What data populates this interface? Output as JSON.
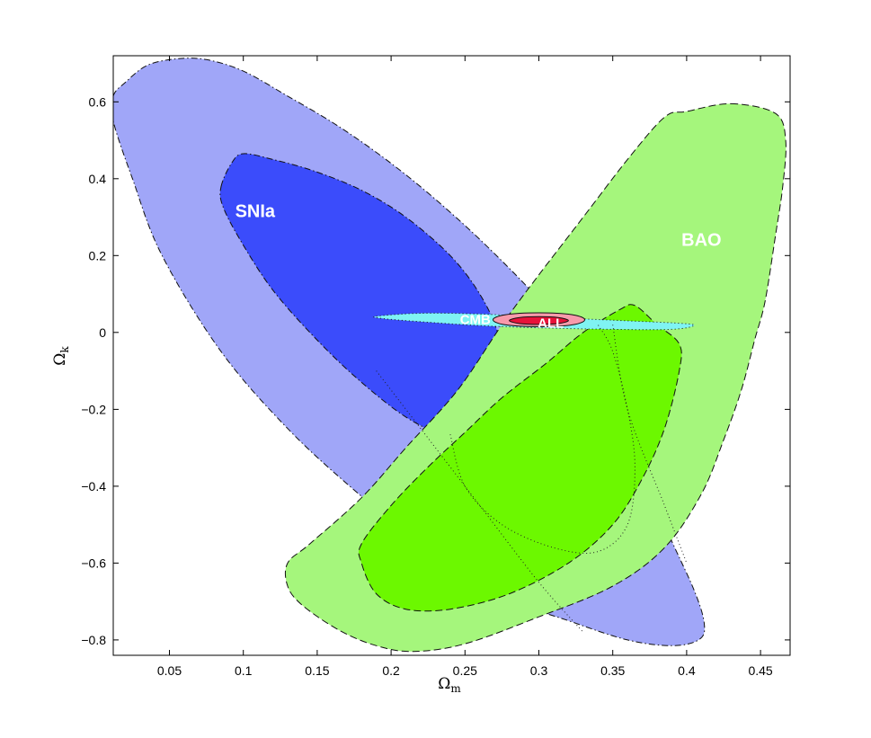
{
  "chart_data": {
    "type": "contour",
    "xlabel": "Ω",
    "xlabel_sub": "m",
    "ylabel": "Ω",
    "ylabel_sub": "k",
    "xlim": [
      0.012,
      0.47
    ],
    "ylim": [
      -0.84,
      0.72
    ],
    "x_ticks": [
      0.05,
      0.1,
      0.15,
      0.2,
      0.25,
      0.3,
      0.35,
      0.4,
      0.45
    ],
    "x_tick_labels": [
      "0.05",
      "0.1",
      "0.15",
      "0.2",
      "0.25",
      "0.3",
      "0.35",
      "0.4",
      "0.45"
    ],
    "y_ticks": [
      0.6,
      0.4,
      0.2,
      0,
      -0.2,
      -0.4,
      -0.6,
      -0.8
    ],
    "y_tick_labels": [
      "0.6",
      "0.4",
      "0.2",
      "0",
      "−0.2",
      "−0.4",
      "−0.6",
      "−0.8"
    ],
    "grid": false,
    "regions": [
      {
        "label": "SNIa",
        "label_pos": [
          0.108,
          0.3
        ],
        "label_size": 20,
        "line_style": "dash-dot",
        "contours": [
          {
            "level": "outer",
            "color": "#a0a6f8",
            "points": [
              [
                0.012,
                0.615
              ],
              [
                0.02,
                0.65
              ],
              [
                0.035,
                0.695
              ],
              [
                0.055,
                0.712
              ],
              [
                0.075,
                0.71
              ],
              [
                0.1,
                0.68
              ],
              [
                0.13,
                0.615
              ],
              [
                0.165,
                0.535
              ],
              [
                0.2,
                0.44
              ],
              [
                0.235,
                0.33
              ],
              [
                0.27,
                0.205
              ],
              [
                0.305,
                0.065
              ],
              [
                0.34,
                -0.1
              ],
              [
                0.365,
                -0.3
              ],
              [
                0.385,
                -0.5
              ],
              [
                0.405,
                -0.67
              ],
              [
                0.412,
                -0.76
              ],
              [
                0.408,
                -0.8
              ],
              [
                0.39,
                -0.815
              ],
              [
                0.36,
                -0.8
              ],
              [
                0.32,
                -0.75
              ],
              [
                0.27,
                -0.68
              ],
              [
                0.22,
                -0.55
              ],
              [
                0.175,
                -0.41
              ],
              [
                0.13,
                -0.25
              ],
              [
                0.085,
                -0.05
              ],
              [
                0.045,
                0.2
              ],
              [
                0.025,
                0.4
              ],
              [
                0.012,
                0.55
              ]
            ]
          },
          {
            "level": "inner",
            "color": "#3b4cfb",
            "points": [
              [
                0.085,
                0.38
              ],
              [
                0.092,
                0.44
              ],
              [
                0.1,
                0.465
              ],
              [
                0.12,
                0.45
              ],
              [
                0.148,
                0.42
              ],
              [
                0.18,
                0.37
              ],
              [
                0.21,
                0.3
              ],
              [
                0.24,
                0.2
              ],
              [
                0.26,
                0.1
              ],
              [
                0.272,
                0.0
              ],
              [
                0.275,
                -0.1
              ],
              [
                0.27,
                -0.2
              ],
              [
                0.255,
                -0.26
              ],
              [
                0.235,
                -0.265
              ],
              [
                0.21,
                -0.22
              ],
              [
                0.18,
                -0.13
              ],
              [
                0.15,
                -0.02
              ],
              [
                0.12,
                0.11
              ],
              [
                0.098,
                0.24
              ],
              [
                0.086,
                0.33
              ]
            ]
          }
        ]
      },
      {
        "label": "BAO",
        "label_pos": [
          0.41,
          0.225
        ],
        "label_size": 20,
        "line_style": "dashed",
        "contours": [
          {
            "level": "outer",
            "color": "#a5f67c",
            "points": [
              [
                0.43,
                0.595
              ],
              [
                0.46,
                0.57
              ],
              [
                0.467,
                0.5
              ],
              [
                0.465,
                0.38
              ],
              [
                0.46,
                0.25
              ],
              [
                0.453,
                0.08
              ],
              [
                0.446,
                -0.02
              ],
              [
                0.437,
                -0.15
              ],
              [
                0.425,
                -0.28
              ],
              [
                0.41,
                -0.42
              ],
              [
                0.385,
                -0.56
              ],
              [
                0.35,
                -0.66
              ],
              [
                0.3,
                -0.74
              ],
              [
                0.25,
                -0.81
              ],
              [
                0.215,
                -0.83
              ],
              [
                0.19,
                -0.815
              ],
              [
                0.165,
                -0.775
              ],
              [
                0.14,
                -0.71
              ],
              [
                0.13,
                -0.66
              ],
              [
                0.13,
                -0.6
              ],
              [
                0.145,
                -0.55
              ],
              [
                0.18,
                -0.43
              ],
              [
                0.21,
                -0.3
              ],
              [
                0.245,
                -0.15
              ],
              [
                0.275,
                0.02
              ],
              [
                0.3,
                0.15
              ],
              [
                0.33,
                0.3
              ],
              [
                0.36,
                0.45
              ],
              [
                0.385,
                0.56
              ],
              [
                0.4,
                0.575
              ]
            ]
          },
          {
            "level": "inner",
            "color": "#6cf800",
            "points": [
              [
                0.38,
                0.02
              ],
              [
                0.395,
                -0.03
              ],
              [
                0.395,
                -0.1
              ],
              [
                0.385,
                -0.25
              ],
              [
                0.37,
                -0.38
              ],
              [
                0.35,
                -0.5
              ],
              [
                0.32,
                -0.6
              ],
              [
                0.28,
                -0.68
              ],
              [
                0.24,
                -0.72
              ],
              [
                0.21,
                -0.72
              ],
              [
                0.19,
                -0.68
              ],
              [
                0.18,
                -0.6
              ],
              [
                0.18,
                -0.55
              ],
              [
                0.2,
                -0.45
              ],
              [
                0.225,
                -0.35
              ],
              [
                0.25,
                -0.26
              ],
              [
                0.275,
                -0.17
              ],
              [
                0.305,
                -0.08
              ],
              [
                0.33,
                0.0
              ],
              [
                0.355,
                0.06
              ],
              [
                0.365,
                0.07
              ]
            ]
          }
        ]
      },
      {
        "label": "CMB",
        "label_pos": [
          0.257,
          0.022
        ],
        "label_size": 15,
        "line_style": "dotted",
        "contours": [
          {
            "level": "outer",
            "color": "#7ff3f3",
            "points": [
              [
                0.19,
                0.042
              ],
              [
                0.22,
                0.05
              ],
              [
                0.26,
                0.048
              ],
              [
                0.3,
                0.04
              ],
              [
                0.35,
                0.032
              ],
              [
                0.395,
                0.024
              ],
              [
                0.405,
                0.018
              ],
              [
                0.39,
                0.008
              ],
              [
                0.35,
                0.008
              ],
              [
                0.3,
                0.012
              ],
              [
                0.26,
                0.018
              ],
              [
                0.22,
                0.028
              ],
              [
                0.195,
                0.036
              ]
            ]
          }
        ]
      },
      {
        "label": "ALL",
        "label_pos": [
          0.308,
          0.012
        ],
        "label_size": 15,
        "line_style": "solid",
        "contours": [
          {
            "level": "outer",
            "color": "#f89aab",
            "points": [
              [
                0.269,
                0.033
              ],
              [
                0.277,
                0.046
              ],
              [
                0.3,
                0.051
              ],
              [
                0.323,
                0.046
              ],
              [
                0.331,
                0.033
              ],
              [
                0.323,
                0.02
              ],
              [
                0.3,
                0.015
              ],
              [
                0.277,
                0.02
              ]
            ]
          },
          {
            "level": "inner",
            "color": "#e8133a",
            "points": [
              [
                0.28,
                0.031
              ],
              [
                0.287,
                0.039
              ],
              [
                0.3,
                0.041
              ],
              [
                0.313,
                0.039
              ],
              [
                0.32,
                0.031
              ],
              [
                0.313,
                0.023
              ],
              [
                0.3,
                0.021
              ],
              [
                0.287,
                0.023
              ]
            ]
          }
        ]
      }
    ],
    "dotted_overlays": [
      {
        "style": "dotted",
        "points": [
          [
            0.24,
            -0.265
          ],
          [
            0.25,
            -0.4
          ],
          [
            0.275,
            -0.5
          ],
          [
            0.31,
            -0.56
          ],
          [
            0.34,
            -0.57
          ],
          [
            0.36,
            -0.5
          ],
          [
            0.365,
            -0.35
          ],
          [
            0.36,
            -0.2
          ],
          [
            0.35,
            -0.05
          ],
          [
            0.34,
            0.02
          ]
        ]
      },
      {
        "style": "dotted",
        "points": [
          [
            0.19,
            -0.1
          ],
          [
            0.22,
            -0.25
          ],
          [
            0.26,
            -0.45
          ],
          [
            0.3,
            -0.65
          ],
          [
            0.33,
            -0.78
          ]
        ]
      },
      {
        "style": "dotted",
        "points": [
          [
            0.35,
            0.02
          ],
          [
            0.36,
            -0.2
          ],
          [
            0.385,
            -0.45
          ],
          [
            0.4,
            -0.6
          ]
        ]
      }
    ]
  }
}
